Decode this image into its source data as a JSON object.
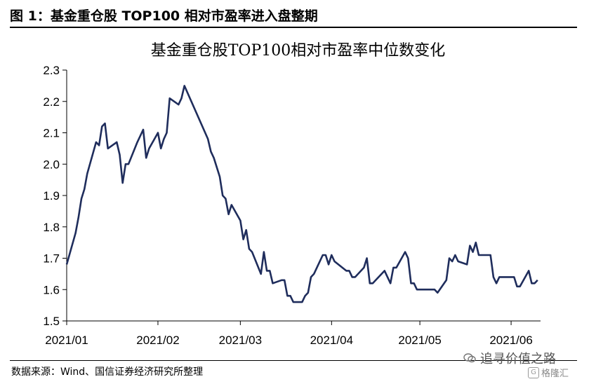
{
  "figure": {
    "title": "图 1：基金重仓股 TOP100 相对市盈率进入盘整期",
    "source": "数据来源：Wind、国信证券经济研究所整理",
    "watermark": "追寻价值之路",
    "watermark_logo": "格隆汇"
  },
  "chart_data": {
    "type": "line",
    "title": "基金重仓股TOP100相对市盈率中位数变化",
    "xlabel": "",
    "ylabel": "",
    "ylim": [
      1.5,
      2.3
    ],
    "yticks": [
      "1.5",
      "1.6",
      "1.7",
      "1.8",
      "1.9",
      "2.0",
      "2.1",
      "2.2",
      "2.3"
    ],
    "xticks": [
      "2021/01",
      "2021/02",
      "2021/03",
      "2021/04",
      "2021/05",
      "2021/06"
    ],
    "xtick_dates": [
      "2021-01-01",
      "2021-02-01",
      "2021-03-01",
      "2021-04-01",
      "2021-05-01",
      "2021-06-01"
    ],
    "xlim": [
      "2021-01-01",
      "2021-06-11"
    ],
    "grid": false,
    "line_color": "#1f2d5c",
    "series": [
      {
        "x": [
          "2021-01-01",
          "2021-01-04",
          "2021-01-05",
          "2021-01-06",
          "2021-01-07",
          "2021-01-08",
          "2021-01-11",
          "2021-01-12",
          "2021-01-13",
          "2021-01-14",
          "2021-01-15",
          "2021-01-18",
          "2021-01-19",
          "2021-01-20",
          "2021-01-21",
          "2021-01-22",
          "2021-01-25",
          "2021-01-26",
          "2021-01-27",
          "2021-01-28",
          "2021-01-29",
          "2021-02-01",
          "2021-02-02",
          "2021-02-03",
          "2021-02-04",
          "2021-02-05",
          "2021-02-08",
          "2021-02-09",
          "2021-02-10",
          "2021-02-18",
          "2021-02-19",
          "2021-02-20",
          "2021-02-22",
          "2021-02-23",
          "2021-02-24",
          "2021-02-25",
          "2021-02-26",
          "2021-03-01",
          "2021-03-02",
          "2021-03-03",
          "2021-03-04",
          "2021-03-05",
          "2021-03-08",
          "2021-03-09",
          "2021-03-10",
          "2021-03-11",
          "2021-03-12",
          "2021-03-15",
          "2021-03-16",
          "2021-03-17",
          "2021-03-18",
          "2021-03-19",
          "2021-03-22",
          "2021-03-23",
          "2021-03-24",
          "2021-03-25",
          "2021-03-26",
          "2021-03-29",
          "2021-03-30",
          "2021-03-31",
          "2021-04-01",
          "2021-04-02",
          "2021-04-06",
          "2021-04-07",
          "2021-04-08",
          "2021-04-09",
          "2021-04-12",
          "2021-04-13",
          "2021-04-14",
          "2021-04-15",
          "2021-04-16",
          "2021-04-19",
          "2021-04-20",
          "2021-04-21",
          "2021-04-22",
          "2021-04-23",
          "2021-04-26",
          "2021-04-27",
          "2021-04-28",
          "2021-04-29",
          "2021-04-30",
          "2021-05-06",
          "2021-05-07",
          "2021-05-10",
          "2021-05-11",
          "2021-05-12",
          "2021-05-13",
          "2021-05-14",
          "2021-05-17",
          "2021-05-18",
          "2021-05-19",
          "2021-05-20",
          "2021-05-21",
          "2021-05-24",
          "2021-05-25",
          "2021-05-26",
          "2021-05-27",
          "2021-05-28",
          "2021-05-31",
          "2021-06-01",
          "2021-06-02",
          "2021-06-03",
          "2021-06-04",
          "2021-06-07",
          "2021-06-08",
          "2021-06-09",
          "2021-06-10"
        ],
        "y": [
          1.68,
          1.78,
          1.83,
          1.89,
          1.92,
          1.97,
          2.07,
          2.06,
          2.12,
          2.13,
          2.05,
          2.07,
          2.03,
          1.94,
          2.0,
          2.0,
          2.07,
          2.09,
          2.11,
          2.02,
          2.05,
          2.1,
          2.05,
          2.08,
          2.1,
          2.21,
          2.19,
          2.21,
          2.25,
          2.08,
          2.04,
          2.02,
          1.96,
          1.9,
          1.89,
          1.84,
          1.87,
          1.82,
          1.76,
          1.79,
          1.73,
          1.72,
          1.65,
          1.72,
          1.66,
          1.66,
          1.62,
          1.63,
          1.63,
          1.58,
          1.58,
          1.56,
          1.56,
          1.58,
          1.59,
          1.64,
          1.65,
          1.71,
          1.71,
          1.68,
          1.71,
          1.69,
          1.66,
          1.66,
          1.64,
          1.64,
          1.67,
          1.7,
          1.62,
          1.62,
          1.63,
          1.66,
          1.64,
          1.62,
          1.67,
          1.67,
          1.72,
          1.7,
          1.62,
          1.62,
          1.6,
          1.6,
          1.59,
          1.63,
          1.7,
          1.69,
          1.71,
          1.69,
          1.68,
          1.74,
          1.72,
          1.75,
          1.71,
          1.71,
          1.71,
          1.64,
          1.62,
          1.64,
          1.64,
          1.64,
          1.64,
          1.61,
          1.61,
          1.66,
          1.62,
          1.62,
          1.63
        ]
      }
    ]
  }
}
